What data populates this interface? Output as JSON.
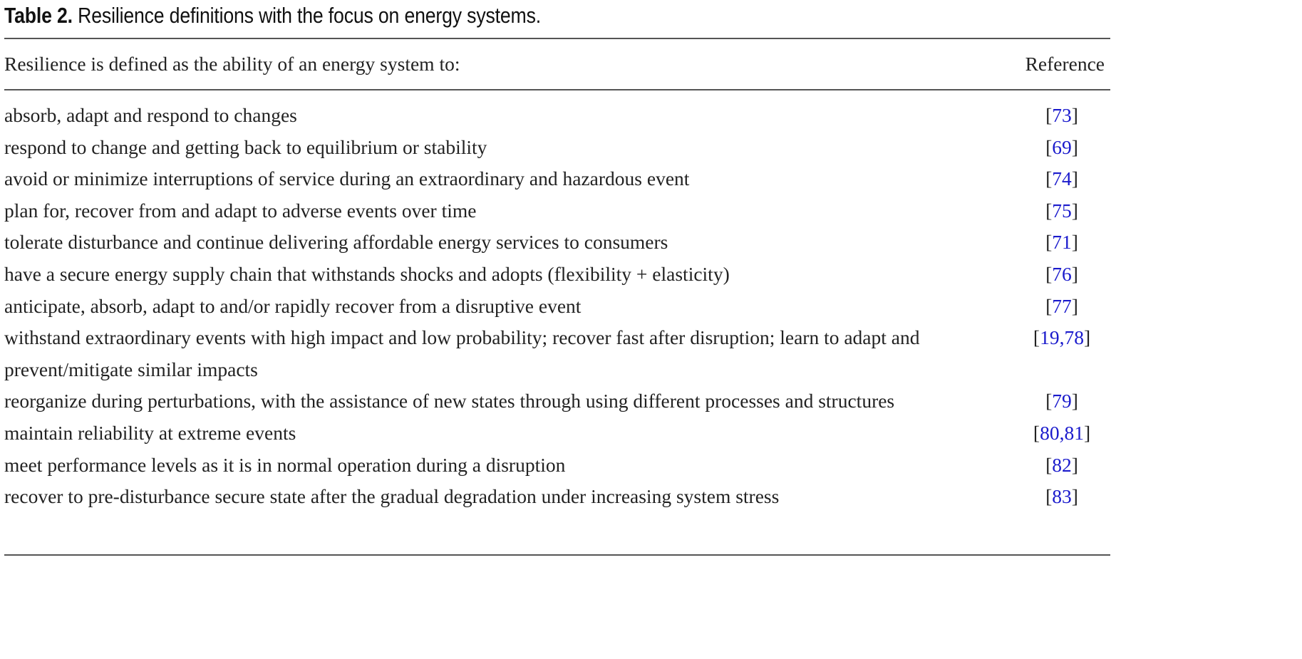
{
  "caption": {
    "label": "Table 2.",
    "text": "Resilience definitions with the focus on energy systems."
  },
  "header": {
    "definition": "Resilience is defined as the ability of an energy system to:",
    "reference": "Reference"
  },
  "rows": [
    {
      "definition": "absorb, adapt and respond to changes",
      "reference": "73"
    },
    {
      "definition": "respond to change and getting back to equilibrium or stability",
      "reference": "69"
    },
    {
      "definition": "avoid or minimize interruptions of service during an extraordinary and hazardous event",
      "reference": "74"
    },
    {
      "definition": "plan for, recover from and adapt to adverse events over time",
      "reference": "75"
    },
    {
      "definition": "tolerate disturbance and continue delivering affordable energy services to consumers",
      "reference": "71"
    },
    {
      "definition": "have a secure energy supply chain that withstands shocks and adopts (flexibility + elasticity)",
      "reference": "76"
    },
    {
      "definition": "anticipate, absorb, adapt to and/or rapidly recover from a disruptive event",
      "reference": "77"
    },
    {
      "definition": "withstand extraordinary events with high impact and low probability; recover fast after disruption; learn to adapt and prevent/mitigate similar impacts",
      "reference": "19,78"
    },
    {
      "definition": "reorganize during perturbations, with the assistance of new states through using different processes and structures",
      "reference": "79"
    },
    {
      "definition": "maintain reliability at extreme events",
      "reference": "80,81"
    },
    {
      "definition": "meet performance levels as it is in normal operation during a disruption",
      "reference": "82"
    },
    {
      "definition": "recover to pre-disturbance secure state after the gradual degradation under increasing system stress",
      "reference": "83"
    }
  ]
}
